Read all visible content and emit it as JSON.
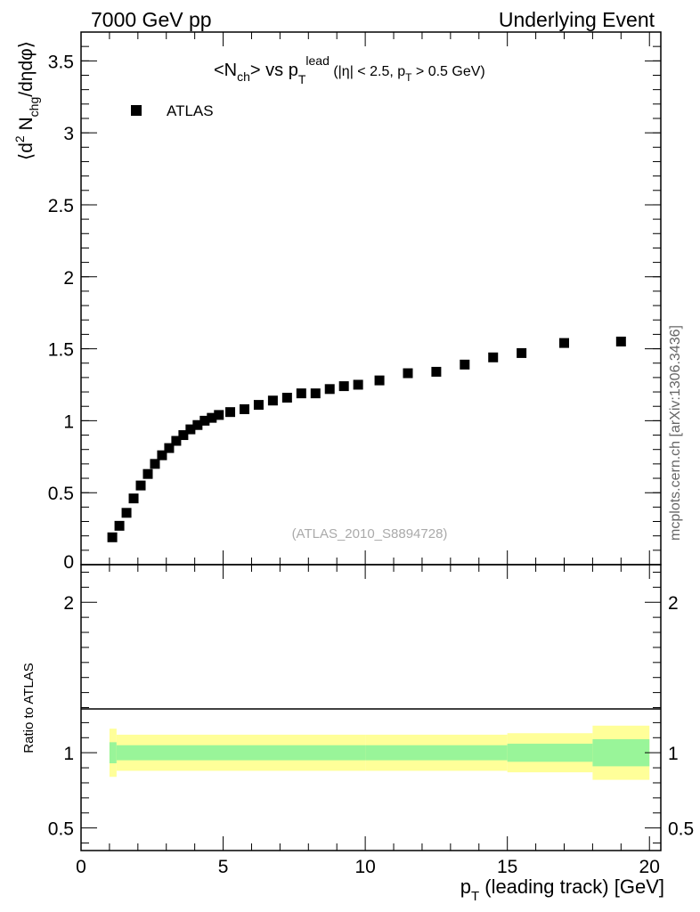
{
  "header": {
    "left": "7000 GeV pp",
    "right": "Underlying Event"
  },
  "side_label": "mcplots.cern.ch [arXiv:1306.3436]",
  "watermark": "(ATLAS_2010_S8894728)",
  "colors": {
    "data_marker": "#000000",
    "band_inner": "#99f599",
    "band_outer": "#ffff99"
  },
  "chart_data": [
    {
      "type": "scatter",
      "title": "<Nch> vs pT lead (|η| < 2.5, pT > 0.5 GeV)",
      "ylabel": "⟨d² Nchg/dηdφ⟩",
      "xlabel": "",
      "xlim": [
        0,
        20.4
      ],
      "ylim": [
        0,
        3.7
      ],
      "yticks": [
        0.5,
        1,
        1.5,
        2,
        2.5,
        3,
        3.5
      ],
      "legend": {
        "placement": "top-left",
        "entries": [
          "ATLAS"
        ]
      },
      "series": [
        {
          "name": "ATLAS",
          "x": [
            1.1,
            1.35,
            1.6,
            1.85,
            2.1,
            2.35,
            2.6,
            2.85,
            3.1,
            3.35,
            3.6,
            3.85,
            4.1,
            4.35,
            4.6,
            4.85,
            5.25,
            5.75,
            6.25,
            6.75,
            7.25,
            7.75,
            8.25,
            8.75,
            9.25,
            9.75,
            10.5,
            11.5,
            12.5,
            13.5,
            14.5,
            15.5,
            17.0,
            19.0
          ],
          "y": [
            0.19,
            0.27,
            0.36,
            0.46,
            0.55,
            0.63,
            0.7,
            0.76,
            0.81,
            0.86,
            0.9,
            0.94,
            0.97,
            1.0,
            1.02,
            1.04,
            1.06,
            1.08,
            1.11,
            1.14,
            1.16,
            1.19,
            1.19,
            1.22,
            1.24,
            1.25,
            1.28,
            1.33,
            1.34,
            1.39,
            1.44,
            1.47,
            1.54,
            1.55
          ]
        }
      ]
    },
    {
      "type": "area",
      "ylabel": "Ratio to ATLAS",
      "xlabel": "pT (leading track) [GeV]",
      "xlim": [
        0,
        20.4
      ],
      "ylim": [
        0.35,
        2.25
      ],
      "xticks": [
        0,
        5,
        10,
        15,
        20
      ],
      "yticks": [
        0.5,
        1,
        2
      ],
      "bands": [
        {
          "x": [
            1.0,
            1.25,
            10.0,
            15.0,
            18.0,
            20.0
          ],
          "outer": [
            0.16,
            0.12,
            0.12,
            0.13,
            0.18,
            0.18
          ],
          "inner": [
            0.07,
            0.05,
            0.05,
            0.06,
            0.09,
            0.1
          ]
        }
      ]
    }
  ]
}
